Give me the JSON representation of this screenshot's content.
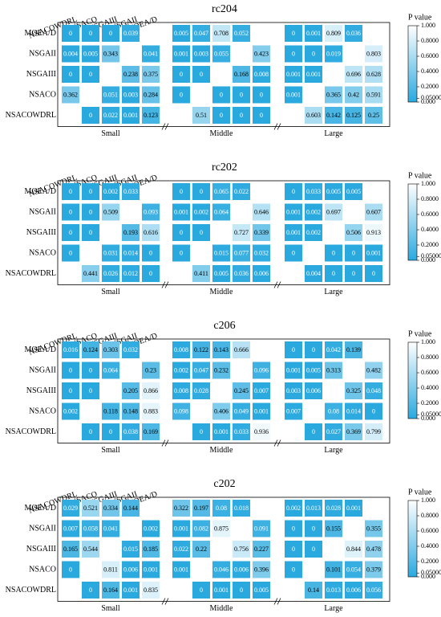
{
  "chart_data": [
    {
      "type": "heatmap",
      "title": "rc204",
      "rows": [
        "MOEA/D",
        "NSGAII",
        "NSGAIII",
        "NSACO",
        "NSACOWDRL"
      ],
      "columns": [
        "NSACOWDRL",
        "NSACO",
        "NSGAIII",
        "NSGAII",
        "MOEA/D"
      ],
      "groups": [
        "Small",
        "Middle",
        "Large"
      ],
      "values": [
        [
          [
            0,
            0,
            0,
            0.039,
            null
          ],
          [
            0.004,
            0.005,
            0.343,
            null,
            0.041
          ],
          [
            0,
            0,
            null,
            0.238,
            0.375
          ],
          [
            0.362,
            null,
            0.051,
            0.003,
            0.284
          ],
          [
            null,
            0,
            0.022,
            0.001,
            0.123
          ]
        ],
        [
          [
            0.005,
            0.047,
            0.708,
            0.052,
            null
          ],
          [
            0.001,
            0.003,
            0.055,
            null,
            0.423
          ],
          [
            0,
            0,
            null,
            0.168,
            0.008
          ],
          [
            0,
            null,
            0,
            0,
            0
          ],
          [
            null,
            0.51,
            0,
            0,
            0
          ]
        ],
        [
          [
            0,
            0.001,
            0.809,
            0.036,
            null
          ],
          [
            0,
            0,
            0.019,
            null,
            0.803
          ],
          [
            0.001,
            0.001,
            null,
            0.696,
            0.628
          ],
          [
            0.001,
            null,
            0.365,
            0.42,
            0.591
          ],
          [
            null,
            0.603,
            0.142,
            0.125,
            0.25
          ]
        ]
      ],
      "colorbar_label": "P value",
      "clim": [
        0,
        1
      ],
      "cmap": [
        "#2aa9df",
        "#ffffff"
      ],
      "cticks": [
        {
          "value": 1,
          "label": "1.000"
        },
        {
          "value": 0.8,
          "label": "0.8000"
        },
        {
          "value": 0.6,
          "label": "0.6000"
        },
        {
          "value": 0.4,
          "label": "0.4000"
        },
        {
          "value": 0.2,
          "label": "0.2000"
        },
        {
          "value": 0.05,
          "label": "0.05000"
        },
        {
          "value": 0,
          "label": "0.000"
        }
      ]
    },
    {
      "type": "heatmap",
      "title": "rc202",
      "rows": [
        "MOEA/D",
        "NSGAII",
        "NSGAIII",
        "NSACO",
        "NSACOWDRL"
      ],
      "columns": [
        "NSACOWDRL",
        "NSACO",
        "NSGAIII",
        "NSGAII",
        "MOEA/D"
      ],
      "groups": [
        "Small",
        "Middle",
        "Large"
      ],
      "values": [
        [
          [
            0,
            0,
            0.002,
            0.033,
            null
          ],
          [
            0,
            0,
            0.509,
            null,
            0.093
          ],
          [
            0,
            0,
            null,
            0.193,
            0.616
          ],
          [
            0,
            null,
            0.031,
            0.014,
            0
          ],
          [
            null,
            0.441,
            0.026,
            0.012,
            0
          ]
        ],
        [
          [
            0,
            0,
            0.065,
            0.022,
            null
          ],
          [
            0.001,
            0.002,
            0.064,
            null,
            0.646
          ],
          [
            0,
            0,
            null,
            0.727,
            0.339
          ],
          [
            0,
            null,
            0.015,
            0.077,
            0.032
          ],
          [
            null,
            0.411,
            0.005,
            0.036,
            0.006
          ]
        ],
        [
          [
            0,
            0.033,
            0.005,
            0.005,
            null
          ],
          [
            0.001,
            0.002,
            0.697,
            null,
            0.607
          ],
          [
            0.001,
            0.002,
            null,
            0.506,
            0.913
          ],
          [
            0,
            null,
            0,
            0,
            0.001
          ],
          [
            null,
            0.004,
            0,
            0,
            0
          ]
        ]
      ],
      "colorbar_label": "P value",
      "clim": [
        0,
        1
      ],
      "cmap": [
        "#2aa9df",
        "#ffffff"
      ],
      "cticks": [
        {
          "value": 1,
          "label": "1.000"
        },
        {
          "value": 0.8,
          "label": "0.8000"
        },
        {
          "value": 0.6,
          "label": "0.6000"
        },
        {
          "value": 0.4,
          "label": "0.4000"
        },
        {
          "value": 0.2,
          "label": "0.2000"
        },
        {
          "value": 0.05,
          "label": "0.05000"
        },
        {
          "value": 0,
          "label": "0.000"
        }
      ]
    },
    {
      "type": "heatmap",
      "title": "c206",
      "rows": [
        "MOEA/D",
        "NSGAII",
        "NSGAIII",
        "NSACO",
        "NSACOWDRL"
      ],
      "columns": [
        "NSACOWDRL",
        "NSACO",
        "NSGAIII",
        "NSGAII",
        "MOEA/D"
      ],
      "groups": [
        "Small",
        "Middle",
        "Large"
      ],
      "values": [
        [
          [
            0.016,
            0.124,
            0.303,
            0.032,
            null
          ],
          [
            0,
            0,
            0.064,
            null,
            0.23
          ],
          [
            0,
            0,
            null,
            0.205,
            0.866
          ],
          [
            0.002,
            null,
            0.118,
            0.148,
            0.883
          ],
          [
            null,
            0,
            0,
            0.038,
            0.169
          ]
        ],
        [
          [
            0.008,
            0.122,
            0.143,
            0.666,
            null
          ],
          [
            0.002,
            0.047,
            0.232,
            null,
            0.096
          ],
          [
            0.008,
            0.028,
            null,
            0.245,
            0.007
          ],
          [
            0.098,
            null,
            0.406,
            0.049,
            0.001
          ],
          [
            null,
            0,
            0.001,
            0.033,
            0.936
          ]
        ],
        [
          [
            0,
            0,
            0.042,
            0.139,
            null
          ],
          [
            0.001,
            0.005,
            0.313,
            null,
            0.482
          ],
          [
            0.003,
            0.006,
            null,
            0.325,
            0.048
          ],
          [
            0.007,
            null,
            0.08,
            0.014,
            0
          ],
          [
            null,
            0,
            0.027,
            0.369,
            0.799
          ]
        ]
      ],
      "colorbar_label": "P value",
      "clim": [
        0,
        1
      ],
      "cmap": [
        "#2aa9df",
        "#ffffff"
      ],
      "cticks": [
        {
          "value": 1,
          "label": "1.000"
        },
        {
          "value": 0.8,
          "label": "0.8000"
        },
        {
          "value": 0.6,
          "label": "0.6000"
        },
        {
          "value": 0.4,
          "label": "0.4000"
        },
        {
          "value": 0.2,
          "label": "0.2000"
        },
        {
          "value": 0.05,
          "label": "0.05000"
        },
        {
          "value": 0,
          "label": "0.000"
        }
      ]
    },
    {
      "type": "heatmap",
      "title": "c202",
      "rows": [
        "MOEA/D",
        "NSGAII",
        "NSGAIII",
        "NSACO",
        "NSACOWDRL"
      ],
      "columns": [
        "NSACOWDRL",
        "NSACO",
        "NSGAIII",
        "NSGAII",
        "MOEA/D"
      ],
      "groups": [
        "Small",
        "Middle",
        "Large"
      ],
      "values": [
        [
          [
            0.029,
            0.521,
            0.334,
            0.144,
            null
          ],
          [
            0.007,
            0.058,
            0.041,
            null,
            0.002
          ],
          [
            0.165,
            0.544,
            null,
            0.015,
            0.185
          ],
          [
            0,
            null,
            0.811,
            0.006,
            0.001
          ],
          [
            null,
            0,
            0.164,
            0.001,
            0.835
          ]
        ],
        [
          [
            0.322,
            0.197,
            0.08,
            0.018,
            null
          ],
          [
            0.001,
            0.082,
            0.875,
            null,
            0.091
          ],
          [
            0.022,
            0.22,
            null,
            0.756,
            0.227
          ],
          [
            0.001,
            null,
            0.046,
            0.006,
            0.396
          ],
          [
            null,
            0,
            0.001,
            0,
            0.005
          ]
        ],
        [
          [
            0.002,
            0.013,
            0.028,
            0.001,
            null
          ],
          [
            0,
            0,
            0.155,
            null,
            0.355
          ],
          [
            0,
            0,
            null,
            0.844,
            0.478
          ],
          [
            0,
            null,
            0.101,
            0.054,
            0.379
          ],
          [
            null,
            0.14,
            0.013,
            0.006,
            0.056
          ]
        ]
      ],
      "colorbar_label": "P value",
      "clim": [
        0,
        1
      ],
      "cmap": [
        "#2aa9df",
        "#ffffff"
      ],
      "cticks": [
        {
          "value": 1,
          "label": "1.000"
        },
        {
          "value": 0.8,
          "label": "0.8000"
        },
        {
          "value": 0.6,
          "label": "0.6000"
        },
        {
          "value": 0.4,
          "label": "0.4000"
        },
        {
          "value": 0.2,
          "label": "0.2000"
        },
        {
          "value": 0.05,
          "label": "0.05000"
        },
        {
          "value": 0,
          "label": "0.000"
        }
      ]
    }
  ]
}
